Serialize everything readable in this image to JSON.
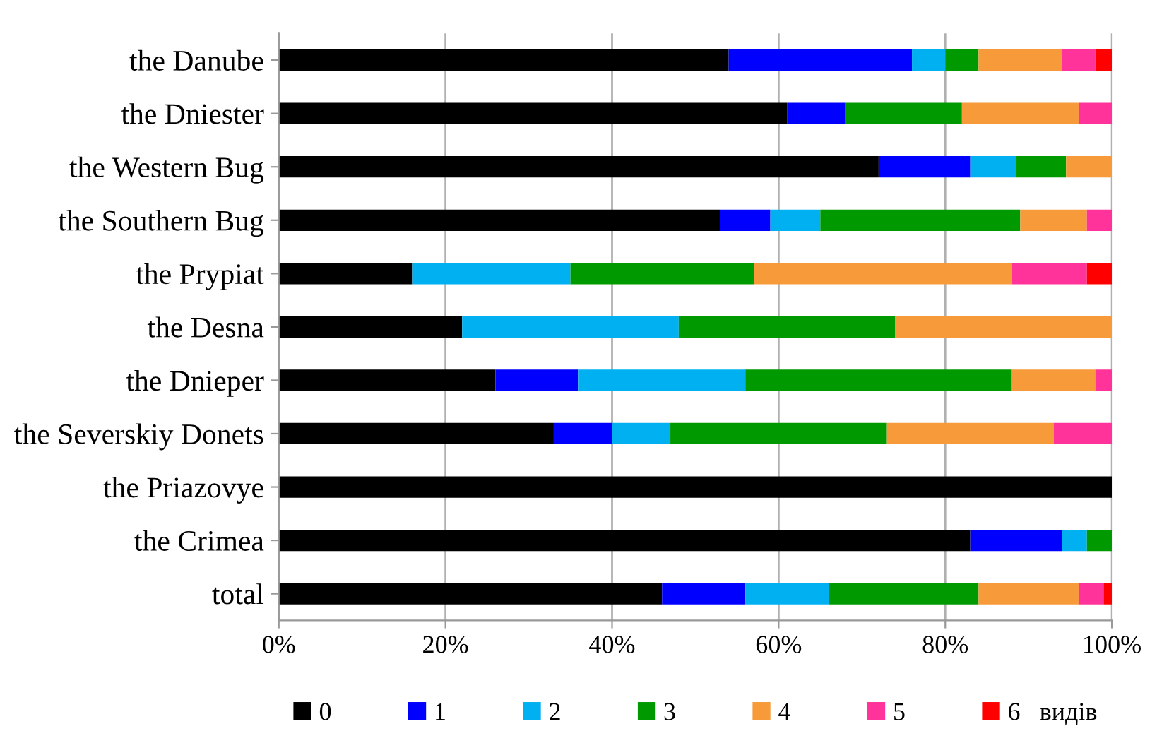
{
  "chart_data": {
    "type": "bar",
    "orientation": "horizontal",
    "stacked": true,
    "categories": [
      "the Danube",
      "the Dniester",
      "the Western Bug",
      "the Southern Bug",
      "the Prypiat",
      "the Desna",
      "the Dnieper",
      "the Severskiy Donets",
      "the Priazovye",
      "the Crimea",
      "total"
    ],
    "series": [
      {
        "name": "0",
        "color": "#000000",
        "values": [
          54,
          61,
          72,
          53,
          16,
          22,
          26,
          33,
          100,
          83,
          46
        ]
      },
      {
        "name": "1",
        "color": "#0000ff",
        "values": [
          22,
          7,
          11,
          6,
          0,
          0,
          10,
          7,
          0,
          11,
          10
        ]
      },
      {
        "name": "2",
        "color": "#00b0f0",
        "values": [
          4,
          0,
          5.5,
          6,
          19,
          26,
          20,
          7,
          0,
          3,
          10
        ]
      },
      {
        "name": "3",
        "color": "#009900",
        "values": [
          4,
          14,
          6,
          24,
          22,
          26,
          32,
          26,
          0,
          3,
          18
        ]
      },
      {
        "name": "4",
        "color": "#f79a3a",
        "values": [
          10,
          14,
          5.5,
          8,
          31,
          26,
          10,
          20,
          0,
          0,
          12
        ]
      },
      {
        "name": "5",
        "color": "#ff3399",
        "values": [
          4,
          4,
          0,
          3,
          9,
          0,
          2,
          7,
          0,
          0,
          3
        ]
      },
      {
        "name": "6   видів",
        "color": "#ff0000",
        "values": [
          2,
          0,
          0,
          0,
          3,
          0,
          0,
          0,
          0,
          0,
          1
        ]
      }
    ],
    "xlim": [
      0,
      100
    ],
    "xticks": [
      {
        "value": 0,
        "label": "0%"
      },
      {
        "value": 20,
        "label": "20%"
      },
      {
        "value": 40,
        "label": "40%"
      },
      {
        "value": 60,
        "label": "60%"
      },
      {
        "value": 80,
        "label": "80%"
      },
      {
        "value": 100,
        "label": "100%"
      }
    ],
    "grid": "x",
    "legend": "bottom"
  }
}
